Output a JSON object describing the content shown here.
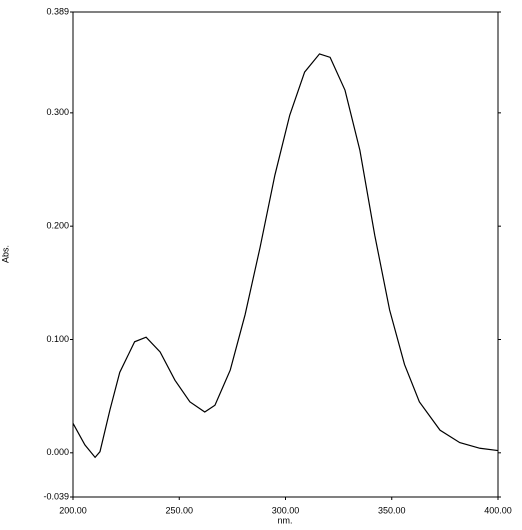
{
  "chart_data": {
    "type": "line",
    "x_label": "nm.",
    "y_label": "Abs.",
    "x": [
      200,
      205.6,
      210.4,
      212.7,
      217.4,
      222,
      229,
      234.4,
      241,
      248,
      255,
      262,
      266.8,
      274,
      281,
      288,
      295,
      302,
      309,
      316,
      321,
      328,
      335,
      342,
      349,
      356,
      363,
      372.7,
      382,
      391.5,
      400
    ],
    "series": [
      {
        "color": "#000000",
        "values": [
          0.026,
          0.007,
          -0.004,
          0.001,
          0.038,
          0.071,
          0.098,
          0.102,
          0.089,
          0.064,
          0.045,
          0.036,
          0.042,
          0.073,
          0.122,
          0.181,
          0.245,
          0.298,
          0.336,
          0.352,
          0.349,
          0.32,
          0.267,
          0.192,
          0.126,
          0.078,
          0.045,
          0.02,
          0.009,
          0.004,
          0.002
        ]
      }
    ],
    "xlim": [
      200,
      400
    ],
    "xticks": [
      {
        "value": 200,
        "label": "200.00"
      },
      {
        "value": 250,
        "label": "250.00"
      },
      {
        "value": 300,
        "label": "300.00"
      },
      {
        "value": 350,
        "label": "350.00"
      },
      {
        "value": 400,
        "label": "400.00"
      }
    ],
    "ylim": [
      -0.039,
      0.389
    ],
    "yticks": [
      -0.039,
      {
        "value": 0,
        "label": "0.000"
      },
      {
        "value": 0.1,
        "label": "0.100"
      },
      {
        "value": 0.2,
        "label": "0.200"
      },
      {
        "value": 0.3,
        "label": "0.300"
      },
      0.389
    ],
    "grid": false
  }
}
